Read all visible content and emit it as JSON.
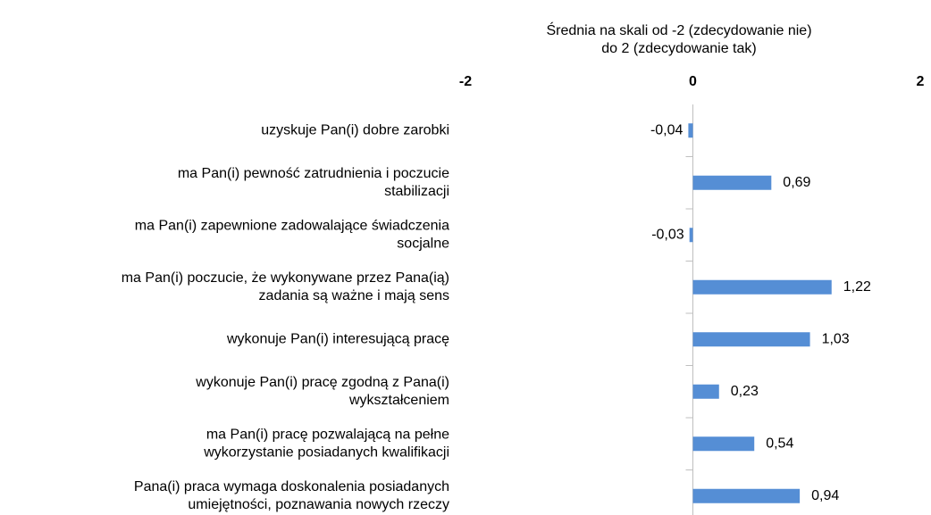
{
  "chart_data": {
    "type": "bar",
    "orientation": "horizontal",
    "title": [
      "Średnia na skali od -2 (zdecydowanie nie)",
      "do 2 (zdecydowanie tak)"
    ],
    "categories": [
      [
        "uzyskuje Pan(i) dobre zarobki"
      ],
      [
        "ma Pan(i) pewność zatrudnienia i poczucie",
        "stabilizacji"
      ],
      [
        "ma Pan(i) zapewnione zadowalające świadczenia",
        "socjalne"
      ],
      [
        "ma Pan(i) poczucie, że wykonywane przez Pana(ią)",
        "zadania są ważne i mają sens"
      ],
      [
        "wykonuje Pan(i) interesującą pracę"
      ],
      [
        "wykonuje Pan(i) pracę zgodną z Pana(i)",
        "wykształceniem"
      ],
      [
        "ma Pan(i) pracę pozwalającą na pełne",
        "wykorzystanie posiadanych kwalifikacji"
      ],
      [
        "Pana(i) praca wymaga doskonalenia posiadanych",
        "umiejętności, poznawania nowych rzeczy"
      ]
    ],
    "values": [
      -0.04,
      0.69,
      -0.03,
      1.22,
      1.03,
      0.23,
      0.54,
      0.94
    ],
    "value_labels": [
      "-0,04",
      "0,69",
      "-0,03",
      "1,22",
      "1,03",
      "0,23",
      "0,54",
      "0,94"
    ],
    "color": "#558ed5",
    "xlim": [
      -2,
      2
    ],
    "xticks": [
      -2,
      0,
      2
    ]
  }
}
